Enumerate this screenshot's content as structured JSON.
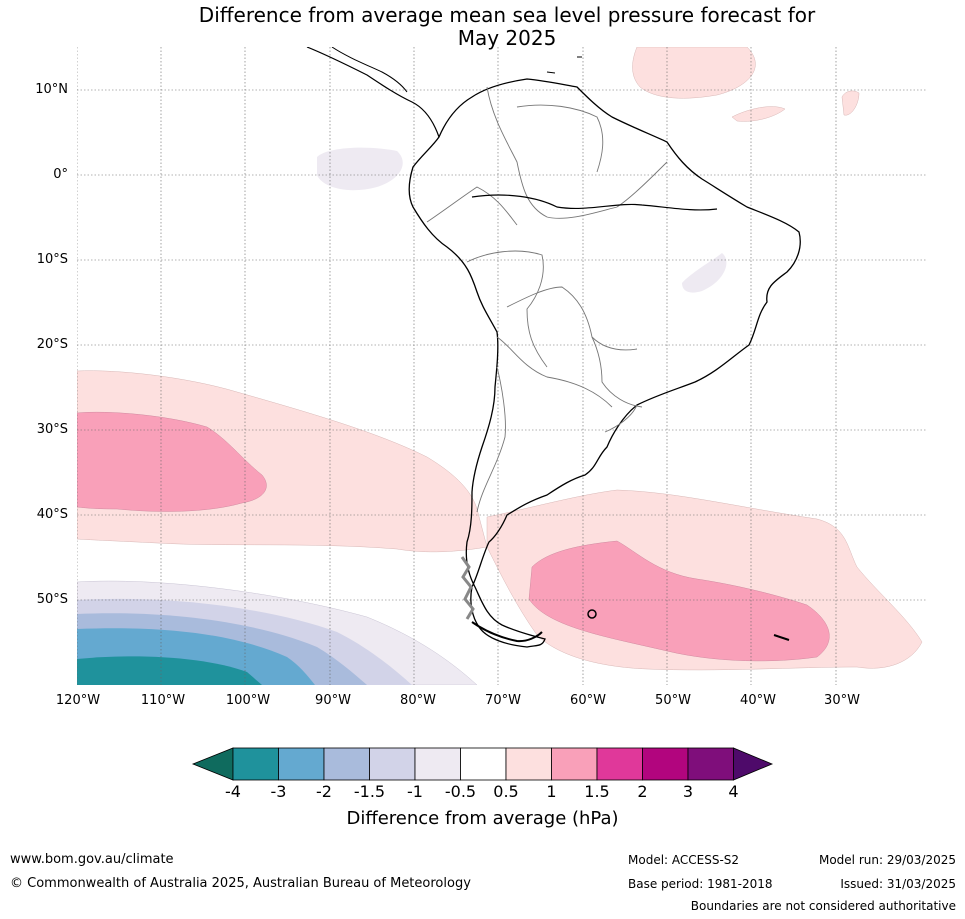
{
  "title_line1": "Difference from average mean sea level pressure forecast for",
  "title_line2": "May 2025",
  "lat_ticks": [
    "10°N",
    "0°",
    "10°S",
    "20°S",
    "30°S",
    "40°S",
    "50°S"
  ],
  "lon_ticks": [
    "120°W",
    "110°W",
    "100°W",
    "90°W",
    "80°W",
    "70°W",
    "60°W",
    "50°W",
    "40°W",
    "30°W"
  ],
  "colorbar": {
    "labels": [
      "-4",
      "-3",
      "-2",
      "-1.5",
      "-1",
      "-0.5",
      "0.5",
      "1",
      "1.5",
      "2",
      "3",
      "4"
    ],
    "colors": [
      "#1f929c",
      "#64a9d0",
      "#a9bbdc",
      "#d2d3e8",
      "#eeeaf2",
      "#ffffff",
      "#fde0df",
      "#f9a0b9",
      "#e0389a",
      "#b2057e",
      "#7f0e7b"
    ],
    "low_extend_color": "#0f6b5e",
    "high_extend_color": "#4e0a6a",
    "title": "Difference from average (hPa)"
  },
  "footer": {
    "url": "www.bom.gov.au/climate",
    "copyright": "© Commonwealth of Australia 2025, Australian Bureau of Meteorology",
    "model": "Model: ACCESS-S2",
    "base_period": "Base period: 1981-2018",
    "model_run": "Model run: 29/03/2025",
    "issued": "Issued: 31/03/2025",
    "disclaimer": "Boundaries are not considered authoritative"
  }
}
